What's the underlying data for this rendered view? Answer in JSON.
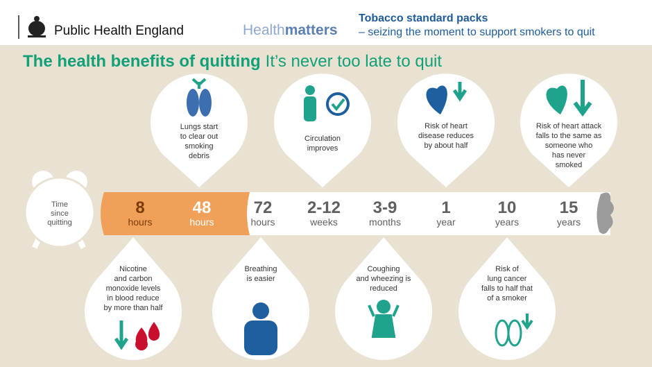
{
  "header": {
    "organisation": "Public Health England",
    "brand_light": "Health",
    "brand_bold": "matters",
    "campaign": "Tobacco standard packs",
    "campaign_subtitle": "– seizing the moment to support smokers to quit"
  },
  "title": {
    "main": "The health benefits of quitting",
    "tagline": "It’s never too late to quit"
  },
  "clock_label": [
    "Time",
    "since",
    "quitting"
  ],
  "timeline": [
    {
      "number": "8",
      "unit": "hours"
    },
    {
      "number": "48",
      "unit": "hours"
    },
    {
      "number": "72",
      "unit": "hours"
    },
    {
      "number": "2-12",
      "unit": "weeks"
    },
    {
      "number": "3-9",
      "unit": "months"
    },
    {
      "number": "1",
      "unit": "year"
    },
    {
      "number": "10",
      "unit": "years"
    },
    {
      "number": "15",
      "unit": "years"
    }
  ],
  "top_callouts": [
    [
      "Lungs start",
      "to clear out",
      "smoking",
      "debris"
    ],
    [
      "Circulation",
      "improves"
    ],
    [
      "Risk of heart",
      "disease reduces",
      "by about half"
    ],
    [
      "Risk of heart attack",
      "falls to the same as",
      "someone who",
      "has never",
      "smoked"
    ]
  ],
  "bottom_callouts": [
    [
      "Nicotine",
      "and carbon",
      "monoxide levels",
      "in blood reduce",
      "by more than half"
    ],
    [
      "Breathing",
      "is easier"
    ],
    [
      "Coughing",
      "and wheezing is",
      "reduced"
    ],
    [
      "Risk of",
      "lung cancer",
      "falls to half that",
      "of a smoker"
    ]
  ]
}
